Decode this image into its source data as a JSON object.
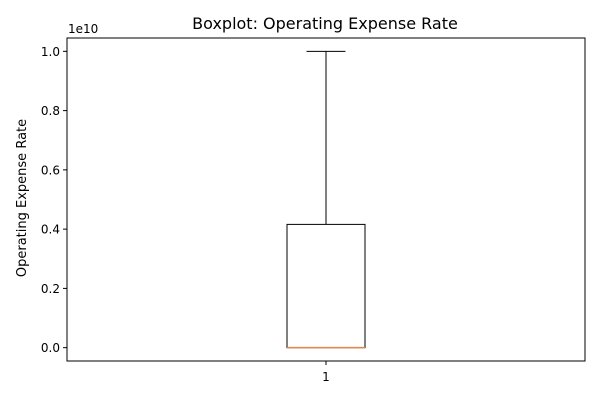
{
  "chart_data": {
    "type": "box",
    "title": "Boxplot:  Operating Expense Rate",
    "ylabel": "Operating Expense Rate",
    "xlabel": "",
    "offset_label": "1e10",
    "categories": [
      "1"
    ],
    "ylim": [
      -0.045,
      1.045
    ],
    "y_ticks": [
      0.0,
      0.2,
      0.4,
      0.6,
      0.8,
      1.0
    ],
    "y_tick_labels": [
      "0.0",
      "0.2",
      "0.4",
      "0.6",
      "0.8",
      "1.0"
    ],
    "y_scale_multiplier": 10000000000,
    "boxes": [
      {
        "label": "1",
        "whisker_low": 0.0,
        "q1": 0.0,
        "median": 0.0,
        "q3": 0.416,
        "whisker_high": 1.0
      }
    ],
    "grid": false,
    "colors": {
      "box": "#000000",
      "median": "#e08850",
      "axes": "#000000",
      "background": "#ffffff"
    }
  }
}
